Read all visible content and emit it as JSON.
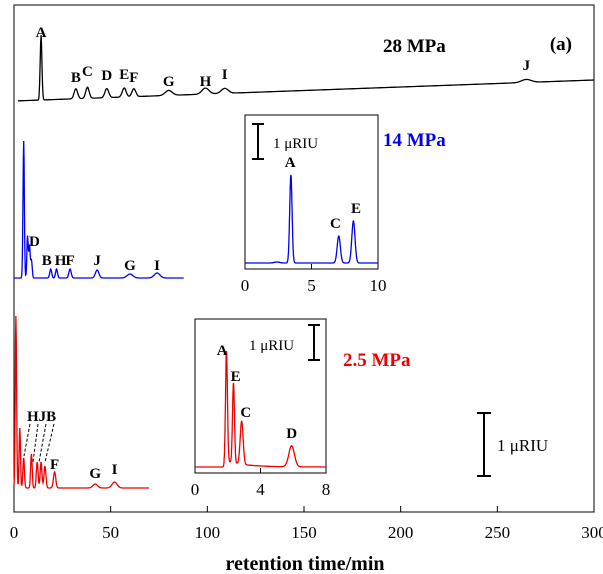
{
  "chart_data": [
    {
      "type": "line",
      "panel_label": "(a)",
      "xlabel": "retention time/min",
      "xlim": [
        0,
        300
      ],
      "x_ticks": [
        "0",
        "50",
        "100",
        "150",
        "200",
        "250",
        "300"
      ],
      "scale_bar_label": "1 μRIU",
      "series": [
        {
          "name": "28 MPa",
          "color": "#000000",
          "peaks": [
            {
              "label": "A",
              "x": 14
            },
            {
              "label": "B",
              "x": 32
            },
            {
              "label": "C",
              "x": 38
            },
            {
              "label": "D",
              "x": 48
            },
            {
              "label": "E",
              "x": 57
            },
            {
              "label": "F",
              "x": 62
            },
            {
              "label": "G",
              "x": 80
            },
            {
              "label": "H",
              "x": 99
            },
            {
              "label": "I",
              "x": 109
            },
            {
              "label": "J",
              "x": 265
            }
          ]
        },
        {
          "name": "14 MPa",
          "color": "#0000ee",
          "peaks": [
            {
              "label": "D",
              "x": 9
            },
            {
              "label": "B",
              "x": 19
            },
            {
              "label": "H",
              "x": 22
            },
            {
              "label": "F",
              "x": 29
            },
            {
              "label": "J",
              "x": 43
            },
            {
              "label": "G",
              "x": 60
            },
            {
              "label": "I",
              "x": 74
            }
          ]
        },
        {
          "name": "2.5 MPa",
          "color": "#ee0000",
          "hjb_label": "HJB",
          "peaks": [
            {
              "label": "F",
              "x": 21
            },
            {
              "label": "G",
              "x": 42
            },
            {
              "label": "I",
              "x": 52
            }
          ]
        }
      ]
    },
    {
      "type": "line",
      "inset_of": "14 MPa",
      "xlim": [
        0,
        10
      ],
      "x_ticks": [
        "0",
        "5",
        "10"
      ],
      "scale_bar_label": "1 μRIU",
      "peaks": [
        {
          "label": "A",
          "x": 3.4
        },
        {
          "label": "C",
          "x": 7.1
        },
        {
          "label": "E",
          "x": 8.2
        }
      ]
    },
    {
      "type": "line",
      "inset_of": "2.5 MPa",
      "xlim": [
        0,
        8
      ],
      "x_ticks": [
        "0",
        "4",
        "8"
      ],
      "scale_bar_label": "1 μRIU",
      "peaks": [
        {
          "label": "A",
          "x": 1.9
        },
        {
          "label": "E",
          "x": 2.3
        },
        {
          "label": "C",
          "x": 2.8
        },
        {
          "label": "D",
          "x": 5.9
        }
      ]
    }
  ]
}
